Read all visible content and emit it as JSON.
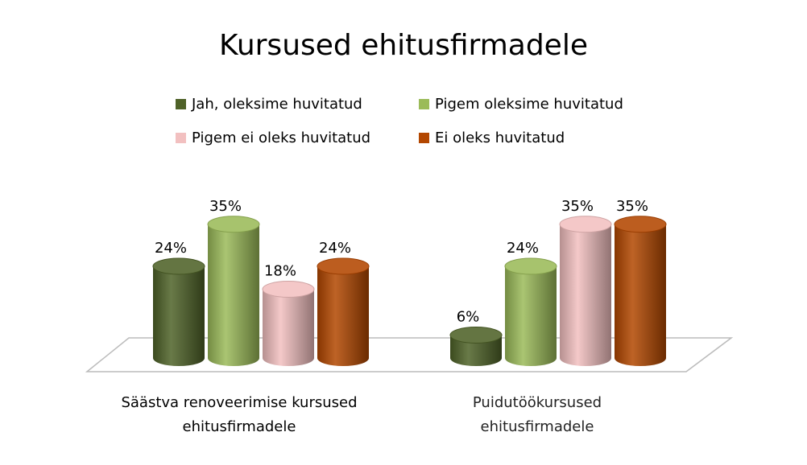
{
  "chart_data": {
    "type": "bar",
    "title": "Kursused ehitusfirmadele",
    "categories": [
      "Säästva renoveerimise kursused ehitusfirmadele",
      "Puidutöökursused ehitusfirmadele"
    ],
    "series": [
      {
        "name": "Jah, oleksime huvitatud",
        "color": "#4f6228",
        "values": [
          24,
          6
        ],
        "value_labels": [
          "24%",
          "6%"
        ]
      },
      {
        "name": "Pigem oleksime huvitatud",
        "color": "#9bbb59",
        "values": [
          35,
          24
        ],
        "value_labels": [
          "35%",
          "24%"
        ]
      },
      {
        "name": "Pigem ei oleks huvitatud",
        "color": "#f2c0c0",
        "values": [
          18,
          35
        ],
        "value_labels": [
          "18%",
          "35%"
        ]
      },
      {
        "name": "Ei oleks huvitatud",
        "color": "#b34700",
        "values": [
          24,
          35
        ],
        "value_labels": [
          "24%",
          "35%"
        ]
      }
    ]
  }
}
